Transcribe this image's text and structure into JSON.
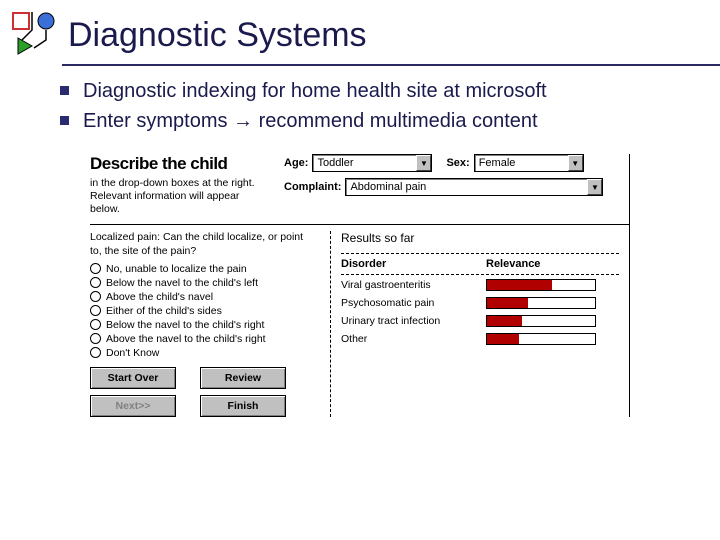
{
  "title": "Diagnostic Systems",
  "bullets": [
    "Diagnostic indexing for home health site at microsoft",
    "Enter symptoms → recommend multimedia content"
  ],
  "describe": {
    "title": "Describe the child",
    "text": "in the drop-down boxes at the right. Relevant information will appear below."
  },
  "form": {
    "age_label": "Age:",
    "age_value": "Toddler",
    "sex_label": "Sex:",
    "sex_value": "Female",
    "complaint_label": "Complaint:",
    "complaint_value": "Abdominal pain"
  },
  "question": "Localized pain:  Can the child localize, or point to, the site of the pain?",
  "options": [
    "No, unable to localize the pain",
    "Below the navel to the child's left",
    "Above the child's navel",
    "Either of the child's sides",
    "Below the navel to the child's right",
    "Above the navel to the child's right",
    "Don't Know"
  ],
  "buttons": {
    "start_over": "Start Over",
    "review": "Review",
    "next": "Next>>",
    "finish": "Finish"
  },
  "results": {
    "title": "Results so far",
    "h_disorder": "Disorder",
    "h_relevance": "Relevance",
    "rows": [
      {
        "name": "Viral gastroenteritis",
        "pct": 60
      },
      {
        "name": "Psychosomatic pain",
        "pct": 38
      },
      {
        "name": "Urinary tract infection",
        "pct": 32
      },
      {
        "name": "Other",
        "pct": 30
      }
    ],
    "bar_color": "#b00000"
  },
  "colors": {
    "title": "#1a1a4d",
    "bullet": "#2a2a70"
  }
}
